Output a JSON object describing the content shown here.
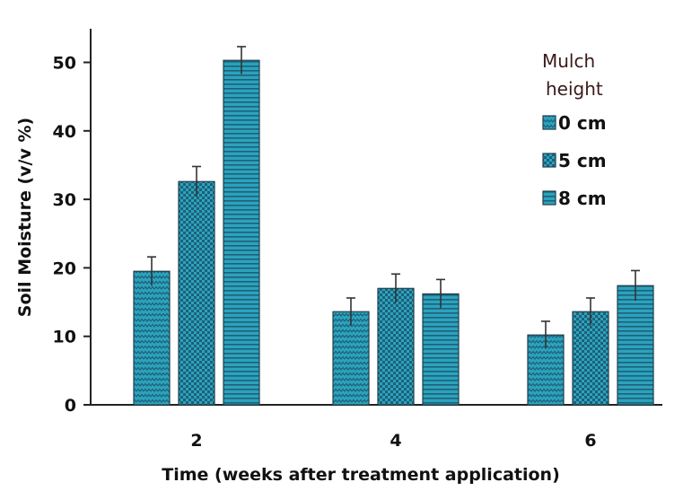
{
  "chart_data": {
    "type": "bar",
    "title": "",
    "xlabel": "Time (weeks after treatment application)",
    "ylabel": "Soil Moisture (v/v %)",
    "categories": [
      "2",
      "4",
      "6"
    ],
    "yticks": [
      "0",
      "10",
      "20",
      "30",
      "40",
      "50"
    ],
    "ylim": [
      0,
      55
    ],
    "legend": {
      "title": [
        "Mulch",
        "height"
      ],
      "placement": "top-right"
    },
    "series": [
      {
        "name": "0 cm",
        "pattern": "zigzag",
        "values": [
          19.5,
          13.6,
          10.2
        ],
        "errors": [
          2.1,
          2.0,
          2.0
        ]
      },
      {
        "name": "5 cm",
        "pattern": "checker",
        "values": [
          32.6,
          17.0,
          13.6
        ],
        "errors": [
          2.2,
          2.1,
          2.0
        ]
      },
      {
        "name": "8 cm",
        "pattern": "stripes",
        "values": [
          50.3,
          16.2,
          17.4
        ],
        "errors": [
          2.0,
          2.1,
          2.2
        ]
      }
    ],
    "colors": {
      "bar_fill": "#2ba3bd",
      "bar_pattern": "#1f5f78",
      "axis": "#222222"
    },
    "grid": false
  }
}
